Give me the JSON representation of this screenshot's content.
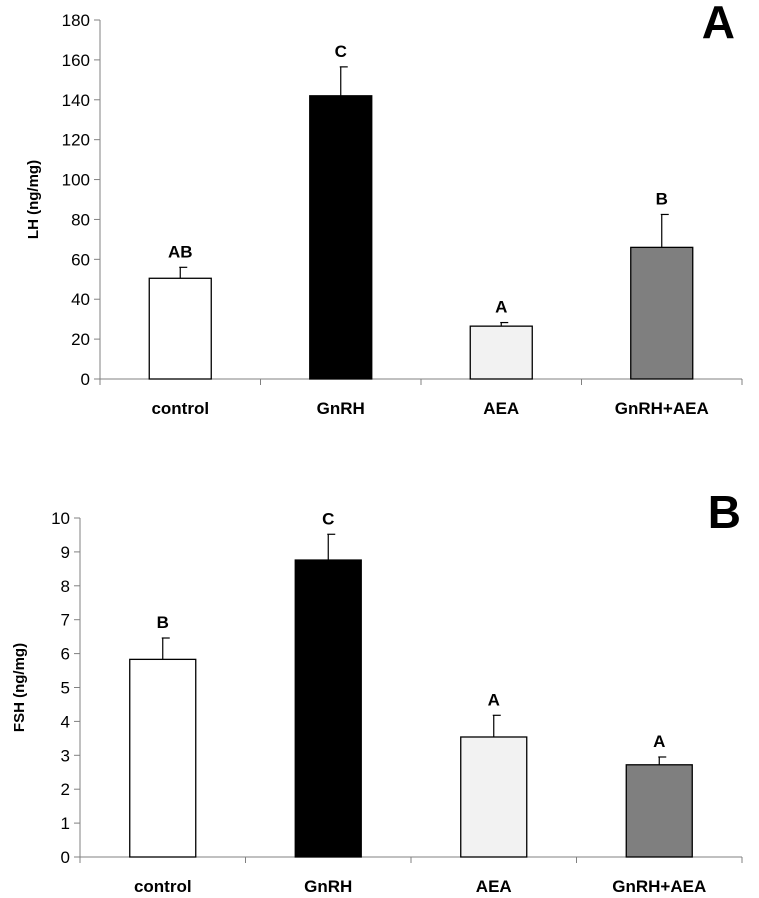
{
  "chart_data": [
    {
      "type": "bar",
      "panel": "A",
      "title": "",
      "xlabel": "",
      "ylabel": "LH  (ng/mg)",
      "ylim": [
        0,
        180
      ],
      "yticks": [
        "0",
        "20",
        "40",
        "60",
        "80",
        "100",
        "120",
        "140",
        "160",
        "180"
      ],
      "grid": false,
      "categories": [
        "control",
        "GnRH",
        "AEA",
        "GnRH+AEA"
      ],
      "values": [
        50.5,
        142,
        26.5,
        66
      ],
      "errors": [
        5.5,
        14.5,
        1.8,
        16.5
      ],
      "significance": [
        "AB",
        "C",
        "A",
        "B"
      ],
      "colors": [
        "#ffffff",
        "#000000",
        "#f2f2f2",
        "#7f7f7f"
      ]
    },
    {
      "type": "bar",
      "panel": "B",
      "title": "",
      "xlabel": "",
      "ylabel": "FSH (ng/mg)",
      "ylim": [
        0,
        10
      ],
      "yticks": [
        "0",
        "1",
        "2",
        "3",
        "4",
        "5",
        "6",
        "7",
        "8",
        "9",
        "10"
      ],
      "grid": false,
      "categories": [
        "control",
        "GnRH",
        "AEA",
        "GnRH+AEA"
      ],
      "values": [
        5.83,
        8.76,
        3.54,
        2.72
      ],
      "errors": [
        0.63,
        0.76,
        0.64,
        0.23
      ],
      "significance": [
        "B",
        "C",
        "A",
        "A"
      ],
      "colors": [
        "#ffffff",
        "#000000",
        "#f2f2f2",
        "#7f7f7f"
      ]
    }
  ]
}
